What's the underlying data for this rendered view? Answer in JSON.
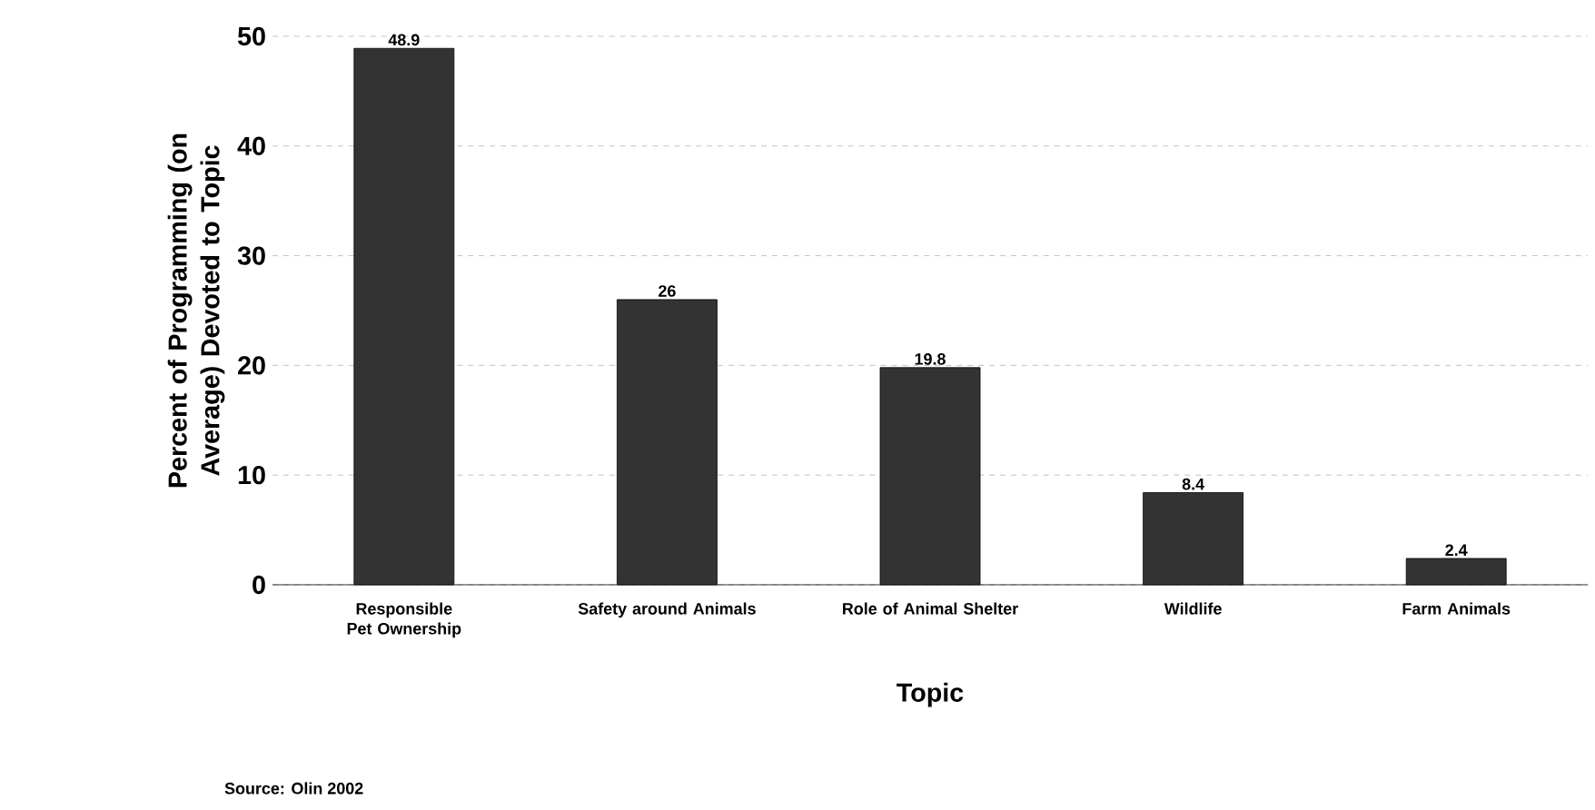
{
  "chart_data": {
    "type": "bar",
    "xlabel": "Topic",
    "ylabel": "Percent of Programming (on Average) Devoted to Topic",
    "categories": [
      "Responsible Pet Ownership",
      "Safety around Animals",
      "Role of Animal Shelter",
      "Wildlife",
      "Farm Animals"
    ],
    "values": [
      48.9,
      26,
      19.8,
      8.4,
      2.4
    ],
    "color": "#333333",
    "data_labels": true,
    "ylim": [
      0,
      50
    ],
    "yticks": [
      0,
      10,
      20,
      30,
      40,
      50
    ],
    "grid": "y",
    "annotations": [
      "Source: Olin 2002"
    ]
  }
}
